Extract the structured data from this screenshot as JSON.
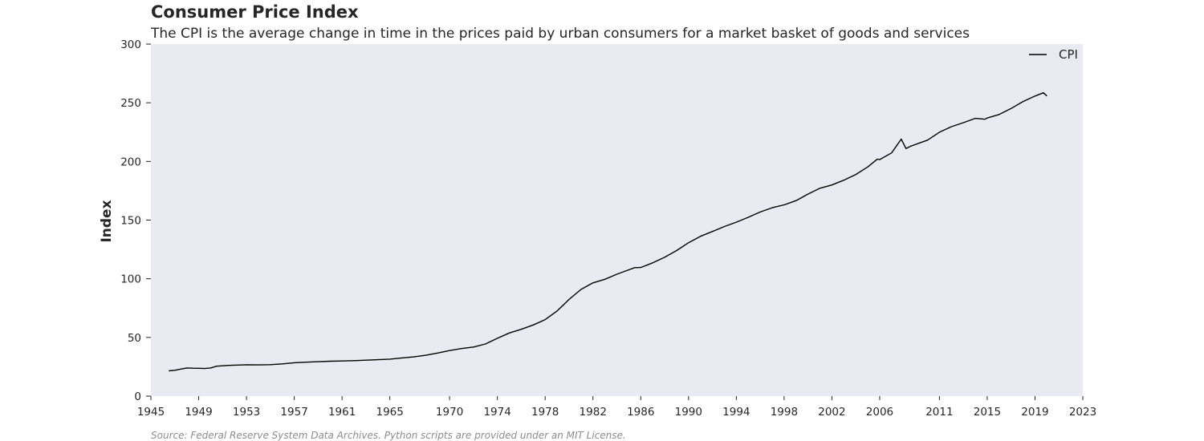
{
  "chart_data": {
    "type": "line",
    "title": "Consumer Price Index",
    "subtitle": "The CPI is the average change in time in the prices paid by urban consumers for a market basket of goods and services",
    "xlabel": "",
    "ylabel": "Index",
    "source": "Source: Federal Reserve System Data Archives. Python scripts are provided under an MIT License.",
    "xlim": [
      1945,
      2023
    ],
    "ylim": [
      0,
      300
    ],
    "x_ticks": [
      1945,
      1949,
      1953,
      1957,
      1961,
      1965,
      1970,
      1974,
      1978,
      1982,
      1986,
      1990,
      1994,
      1998,
      2002,
      2006,
      2011,
      2015,
      2019,
      2023
    ],
    "y_ticks": [
      0,
      50,
      100,
      150,
      200,
      250,
      300
    ],
    "grid": false,
    "background": "#eaeaf2",
    "legend": {
      "placement": "top-right"
    },
    "series": [
      {
        "name": "CPI",
        "color": "#000000",
        "x": [
          1946.5,
          1947.0,
          1947.5,
          1948.0,
          1948.5,
          1949.0,
          1949.5,
          1950.0,
          1950.5,
          1951.0,
          1951.5,
          1952.0,
          1953.0,
          1954.0,
          1955.0,
          1956.0,
          1957.0,
          1958.0,
          1959.0,
          1960.0,
          1961.0,
          1962.0,
          1963.0,
          1964.0,
          1965.0,
          1966.0,
          1967.0,
          1968.0,
          1969.0,
          1970.0,
          1971.0,
          1972.0,
          1973.0,
          1974.0,
          1975.0,
          1976.0,
          1977.0,
          1978.0,
          1979.0,
          1980.0,
          1981.0,
          1982.0,
          1983.0,
          1984.0,
          1985.0,
          1985.5,
          1986.0,
          1987.0,
          1988.0,
          1989.0,
          1990.0,
          1991.0,
          1992.0,
          1993.0,
          1994.0,
          1995.0,
          1996.0,
          1997.0,
          1998.0,
          1999.0,
          2000.0,
          2001.0,
          2002.0,
          2003.0,
          2004.0,
          2005.0,
          2005.8,
          2006.0,
          2007.0,
          2007.8,
          2008.2,
          2008.6,
          2009.0,
          2010.0,
          2011.0,
          2012.0,
          2013.0,
          2014.0,
          2014.8,
          2015.0,
          2016.0,
          2017.0,
          2018.0,
          2019.0,
          2019.7,
          2020.0
        ],
        "values": [
          21.5,
          22.0,
          23.0,
          24.0,
          23.8,
          23.7,
          23.5,
          24.0,
          25.5,
          25.8,
          26.2,
          26.4,
          26.7,
          26.6,
          26.8,
          27.5,
          28.4,
          28.9,
          29.3,
          29.7,
          29.9,
          30.2,
          30.6,
          31.0,
          31.5,
          32.5,
          33.4,
          34.8,
          36.7,
          38.8,
          40.5,
          41.8,
          44.4,
          49.3,
          53.8,
          56.9,
          60.6,
          65.2,
          72.6,
          82.4,
          90.9,
          96.5,
          99.6,
          103.9,
          107.6,
          109.5,
          109.6,
          113.6,
          118.3,
          124.0,
          130.7,
          136.2,
          140.3,
          144.5,
          148.2,
          152.4,
          156.9,
          160.5,
          163.0,
          166.6,
          172.2,
          177.1,
          179.9,
          184.0,
          188.9,
          195.3,
          202.0,
          201.6,
          207.3,
          219.0,
          211.0,
          213.0,
          214.5,
          218.1,
          224.9,
          229.6,
          233.0,
          236.7,
          236.0,
          237.0,
          240.0,
          245.1,
          251.1,
          255.7,
          258.5,
          255.8
        ]
      }
    ]
  }
}
